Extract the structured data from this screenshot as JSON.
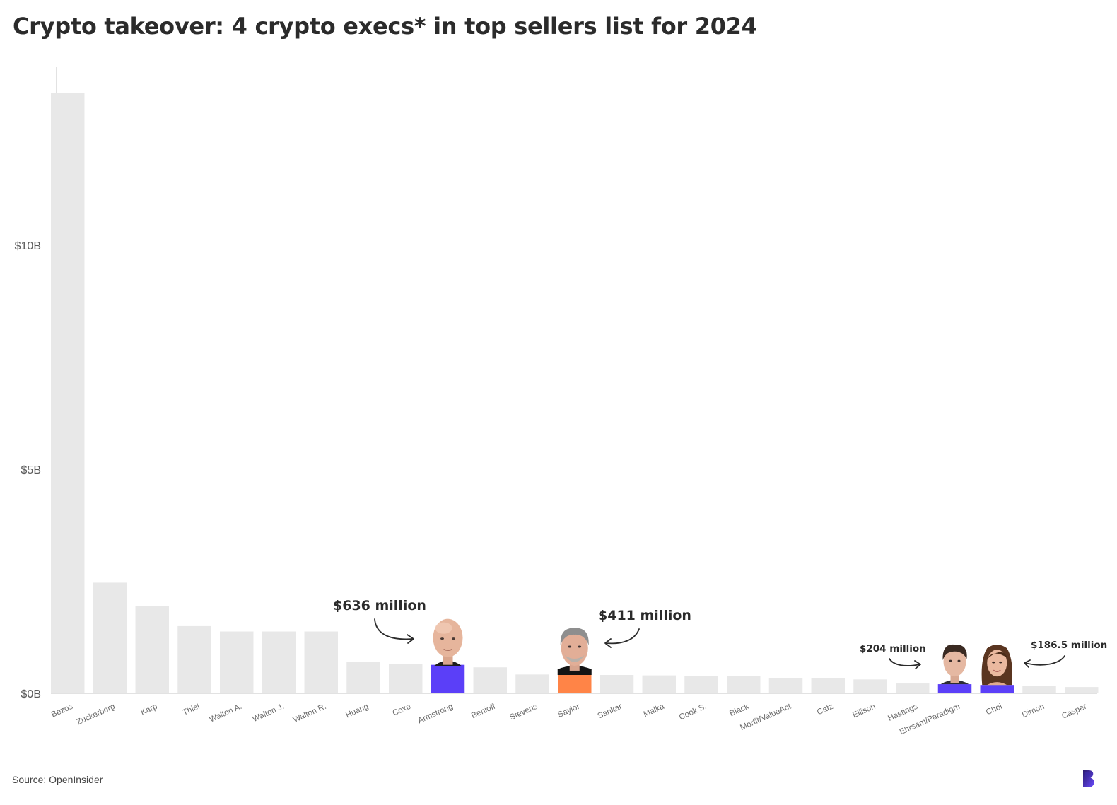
{
  "header": {
    "title": "Crypto takeover: 4 crypto execs* in top sellers list for 2024"
  },
  "footer": {
    "source": "Source: OpenInsider",
    "logo_icon": "brand-b-logo-icon"
  },
  "colors": {
    "default_bar": "#e8e8e8",
    "crypto_purple": "#5b3ff8",
    "crypto_orange": "#ff8447",
    "axis": "#e2e2e2",
    "text": "#2b2b2b",
    "tick_text": "#5a5a5a"
  },
  "chart_data": {
    "type": "bar",
    "title": "Crypto takeover: 4 crypto execs* in top sellers list for 2024",
    "xlabel": "",
    "ylabel": "",
    "ylim": [
      0,
      14
    ],
    "y_unit": "billions USD",
    "y_ticks": [
      {
        "value": 0,
        "label": "$0B"
      },
      {
        "value": 5,
        "label": "$5B"
      },
      {
        "value": 10,
        "label": "$10B"
      }
    ],
    "grid": false,
    "legend": "none",
    "categories": [
      "Bezos",
      "Zuckerberg",
      "Karp",
      "Thiel",
      "Walton A.",
      "Walton J.",
      "Walton R.",
      "Huang",
      "Coxe",
      "Armstrong",
      "Benioff",
      "Stevens",
      "Saylor",
      "Sankar",
      "Malka",
      "Cook S.",
      "Black",
      "Morfit/ValueAct",
      "Catz",
      "Ellison",
      "Hastings",
      "Ehrsam/Paradigm",
      "Choi",
      "Dimon",
      "Casper"
    ],
    "values": [
      13.4,
      2.47,
      1.95,
      1.5,
      1.38,
      1.38,
      1.38,
      0.7,
      0.65,
      0.636,
      0.58,
      0.42,
      0.411,
      0.41,
      0.4,
      0.39,
      0.38,
      0.34,
      0.34,
      0.31,
      0.22,
      0.204,
      0.1865,
      0.17,
      0.14
    ],
    "highlights": [
      {
        "category": "Armstrong",
        "color": "#5b3ff8",
        "portrait": "armstrong-portrait-icon"
      },
      {
        "category": "Saylor",
        "color": "#ff8447",
        "portrait": "saylor-portrait-icon"
      },
      {
        "category": "Ehrsam/Paradigm",
        "color": "#5b3ff8",
        "portrait": "ehrsam-portrait-icon"
      },
      {
        "category": "Choi",
        "color": "#5b3ff8",
        "portrait": "choi-portrait-icon"
      }
    ],
    "annotations": [
      {
        "category": "Armstrong",
        "text": "$636 million"
      },
      {
        "category": "Saylor",
        "text": "$411 million"
      },
      {
        "category": "Ehrsam/Paradigm",
        "text": "$204 million"
      },
      {
        "category": "Choi",
        "text": "$186.5 million"
      }
    ]
  }
}
